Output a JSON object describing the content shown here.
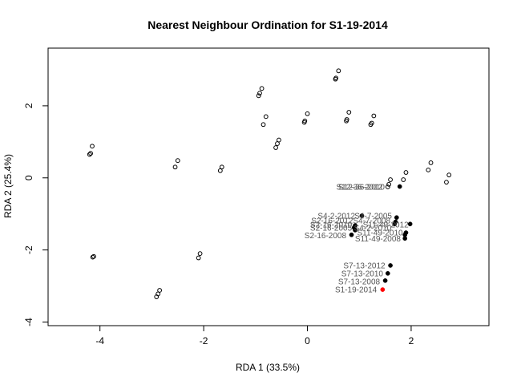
{
  "chart_data": {
    "type": "scatter",
    "title": "Nearest Neighbour Ordination for S1-19-2014",
    "xlabel": "RDA 1 (33.5%)",
    "ylabel": "RDA 2 (25.4%)",
    "xlim": [
      -5.0,
      3.5
    ],
    "ylim": [
      -4.1,
      3.6
    ],
    "xticks": [
      -4,
      -2,
      0,
      2
    ],
    "xtick_labels": [
      "-4",
      "-2",
      "0",
      "2"
    ],
    "yticks": [
      -4,
      -2,
      0,
      2
    ],
    "ytick_labels": [
      "-4",
      "-2",
      "0",
      "2"
    ],
    "grid": false,
    "colors": {
      "open": "#000000",
      "neighbour": "#000000",
      "target": "#ff0000",
      "label": "#555555",
      "target_label": "#ff0000"
    },
    "series": [
      {
        "marker": "open-circle",
        "points": [
          {
            "x": -4.15,
            "y": 0.88
          },
          {
            "x": -4.18,
            "y": 0.68
          },
          {
            "x": -4.2,
            "y": 0.65
          },
          {
            "x": -4.12,
            "y": -2.18
          },
          {
            "x": -4.14,
            "y": -2.2
          },
          {
            "x": -2.5,
            "y": 0.48
          },
          {
            "x": -2.55,
            "y": 0.3
          },
          {
            "x": -2.85,
            "y": -3.12
          },
          {
            "x": -2.88,
            "y": -3.22
          },
          {
            "x": -2.91,
            "y": -3.3
          },
          {
            "x": -2.07,
            "y": -2.1
          },
          {
            "x": -2.1,
            "y": -2.22
          },
          {
            "x": -1.65,
            "y": 0.3
          },
          {
            "x": -1.68,
            "y": 0.2
          },
          {
            "x": -0.88,
            "y": 2.48
          },
          {
            "x": -0.92,
            "y": 2.35
          },
          {
            "x": -0.94,
            "y": 2.28
          },
          {
            "x": -0.8,
            "y": 1.7
          },
          {
            "x": -0.85,
            "y": 1.48
          },
          {
            "x": -0.55,
            "y": 1.05
          },
          {
            "x": -0.58,
            "y": 0.95
          },
          {
            "x": -0.61,
            "y": 0.84
          },
          {
            "x": 0.0,
            "y": 1.78
          },
          {
            "x": -0.05,
            "y": 1.58
          },
          {
            "x": -0.06,
            "y": 1.54
          },
          {
            "x": 0.6,
            "y": 2.97
          },
          {
            "x": 0.55,
            "y": 2.77
          },
          {
            "x": 0.54,
            "y": 2.74
          },
          {
            "x": 0.8,
            "y": 1.82
          },
          {
            "x": 0.76,
            "y": 1.62
          },
          {
            "x": 0.75,
            "y": 1.58
          },
          {
            "x": 1.28,
            "y": 1.72
          },
          {
            "x": 1.24,
            "y": 1.52
          },
          {
            "x": 1.22,
            "y": 1.48
          },
          {
            "x": 1.6,
            "y": -0.05
          },
          {
            "x": 1.57,
            "y": -0.18
          },
          {
            "x": 1.55,
            "y": -0.25
          },
          {
            "x": 1.9,
            "y": 0.15
          },
          {
            "x": 1.85,
            "y": -0.05
          },
          {
            "x": 2.38,
            "y": 0.42
          },
          {
            "x": 2.33,
            "y": 0.22
          },
          {
            "x": 2.73,
            "y": 0.08
          },
          {
            "x": 2.68,
            "y": -0.12
          }
        ]
      },
      {
        "marker": "filled-circle",
        "points": [
          {
            "x": 1.78,
            "y": -0.24
          },
          {
            "x": 1.05,
            "y": -1.05
          },
          {
            "x": 1.72,
            "y": -1.1
          },
          {
            "x": 1.7,
            "y": -1.22
          },
          {
            "x": 1.68,
            "y": -1.28
          },
          {
            "x": 1.98,
            "y": -1.28
          },
          {
            "x": 0.92,
            "y": -1.32
          },
          {
            "x": 0.9,
            "y": -1.38
          },
          {
            "x": 0.92,
            "y": -1.45
          },
          {
            "x": 1.9,
            "y": -1.52
          },
          {
            "x": 1.88,
            "y": -1.58
          },
          {
            "x": 1.88,
            "y": -1.68
          },
          {
            "x": 0.85,
            "y": -1.58
          },
          {
            "x": 1.6,
            "y": -2.43
          },
          {
            "x": 1.55,
            "y": -2.65
          },
          {
            "x": 1.5,
            "y": -2.85
          }
        ]
      },
      {
        "marker": "target",
        "points": [
          {
            "x": 1.45,
            "y": -3.1
          }
        ]
      }
    ],
    "point_labels": [
      {
        "text": "S12-36-2012",
        "x": 1.45,
        "y": -0.25,
        "color": "label"
      },
      {
        "text": "S12-36-2010",
        "x": 1.49,
        "y": -0.25,
        "color": "label"
      },
      {
        "text": "S4-2-2012",
        "x": 0.92,
        "y": -1.05,
        "color": "label"
      },
      {
        "text": "S4-7-2005",
        "x": 1.63,
        "y": -1.05,
        "color": "label"
      },
      {
        "text": "S2-16-2012",
        "x": 0.88,
        "y": -1.18,
        "color": "label"
      },
      {
        "text": "S4-7-2008",
        "x": 1.6,
        "y": -1.18,
        "color": "label"
      },
      {
        "text": "S2-16-2010",
        "x": 0.86,
        "y": -1.3,
        "color": "label"
      },
      {
        "text": "S11-49-2012",
        "x": 1.95,
        "y": -1.3,
        "color": "label"
      },
      {
        "text": "S2-16-2005",
        "x": 0.86,
        "y": -1.38,
        "color": "label"
      },
      {
        "text": "S4-2-2010",
        "x": 1.62,
        "y": -1.38,
        "color": "label"
      },
      {
        "text": "S11-49-2010",
        "x": 1.84,
        "y": -1.52,
        "color": "label"
      },
      {
        "text": "S2-16-2008",
        "x": 0.75,
        "y": -1.6,
        "color": "label"
      },
      {
        "text": "S11-49-2008",
        "x": 1.8,
        "y": -1.69,
        "color": "label"
      },
      {
        "text": "S7-13-2012",
        "x": 1.5,
        "y": -2.43,
        "color": "label"
      },
      {
        "text": "S7-13-2010",
        "x": 1.46,
        "y": -2.65,
        "color": "label"
      },
      {
        "text": "S7-13-2008",
        "x": 1.4,
        "y": -2.88,
        "color": "label"
      },
      {
        "text": "S1-19-2014",
        "x": 1.34,
        "y": -3.1,
        "color": "target_label"
      }
    ]
  }
}
